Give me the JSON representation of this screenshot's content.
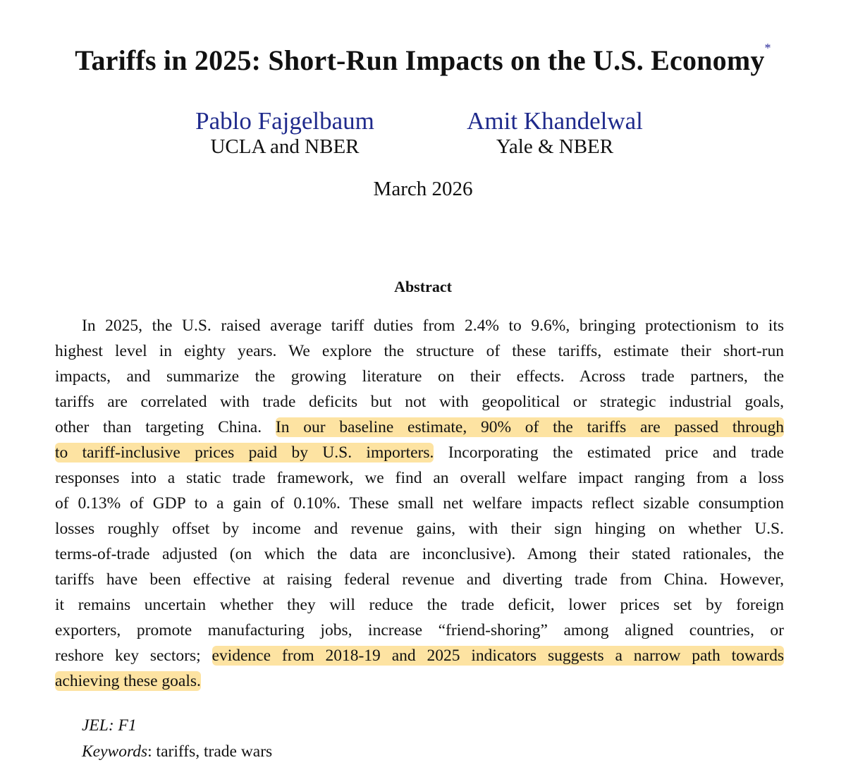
{
  "title": "Tariffs in 2025: Short-Run Impacts on the U.S. Economy",
  "title_footnote_mark": "*",
  "authors": [
    {
      "name": "Pablo Fajgelbaum",
      "affiliation": "UCLA and NBER"
    },
    {
      "name": "Amit Khandelwal",
      "affiliation": "Yale & NBER"
    }
  ],
  "date": "March 2026",
  "abstract_heading": "Abstract",
  "highlight_color": "#fde3a2",
  "abstract_lines": [
    [
      {
        "text": "In 2025, the U.S. raised average tariff duties from 2.4% to 9.6%, bringing protectionism to its",
        "highlight": false
      }
    ],
    [
      {
        "text": "highest level in eighty years. We explore the structure of these tariffs, estimate their short-run",
        "highlight": false
      }
    ],
    [
      {
        "text": "impacts, and summarize the growing literature on their effects. Across trade partners, the",
        "highlight": false
      }
    ],
    [
      {
        "text": "tariffs are correlated with trade deficits but not with geopolitical or strategic industrial goals,",
        "highlight": false
      }
    ],
    [
      {
        "text": "other than targeting China. ",
        "highlight": false
      },
      {
        "text": "In our baseline estimate, 90% of the tariffs are passed through",
        "highlight": true
      }
    ],
    [
      {
        "text": "to tariff-inclusive prices paid by U.S. importers.",
        "highlight": true
      },
      {
        "text": " Incorporating the estimated price and trade",
        "highlight": false
      }
    ],
    [
      {
        "text": "responses into a static trade framework, we find an overall welfare impact ranging from a loss",
        "highlight": false
      }
    ],
    [
      {
        "text": "of 0.13% of GDP to a gain of 0.10%. These small net welfare impacts reflect sizable consumption",
        "highlight": false
      }
    ],
    [
      {
        "text": "losses roughly offset by income and revenue gains, with their sign hinging on whether U.S.",
        "highlight": false
      }
    ],
    [
      {
        "text": "terms-of-trade adjusted (on which the data are inconclusive). Among their stated rationales, the",
        "highlight": false
      }
    ],
    [
      {
        "text": "tariffs have been effective at raising federal revenue and diverting trade from China. However,",
        "highlight": false
      }
    ],
    [
      {
        "text": "it remains uncertain whether they will reduce the trade deficit, lower prices set by foreign",
        "highlight": false
      }
    ],
    [
      {
        "text": "exporters, promote manufacturing jobs, increase “friend-shoring” among aligned countries, or",
        "highlight": false
      }
    ],
    [
      {
        "text": "reshore key sectors; ",
        "highlight": false
      },
      {
        "text": "evidence from 2018-19 and 2025 indicators suggests a narrow path towards",
        "highlight": true
      }
    ],
    [
      {
        "text": "achieving these goals.",
        "highlight": true
      }
    ]
  ],
  "jel": {
    "label": "JEL: F1"
  },
  "keywords": {
    "label": "Keywords",
    "value": ": tariffs, trade wars"
  }
}
